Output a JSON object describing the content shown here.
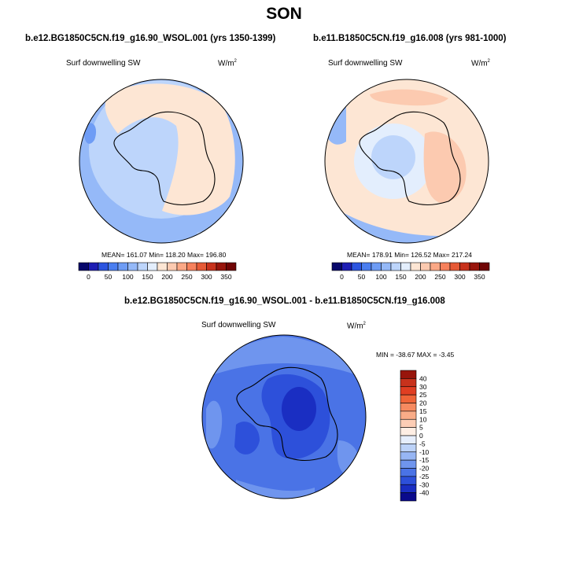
{
  "page": {
    "title": "SON"
  },
  "chart_data": [
    {
      "type": "heatmap",
      "projection": "south-polar-stereographic",
      "title": "b.e12.BG1850C5CN.f19_g16.90_WSOL.001 (yrs 1350-1399)",
      "field_label": "Surf downwelling SW",
      "units_base": "W/m",
      "units_exp": "2",
      "stats": {
        "mean": "161.07",
        "min": "118.20",
        "max": "196.80",
        "text": "MEAN= 161.07  Min= 118.20  Max= 196.80"
      },
      "colorbar": {
        "orientation": "horizontal",
        "levels": [
          0,
          25,
          50,
          75,
          100,
          125,
          150,
          175,
          200,
          225,
          250,
          275,
          300,
          325,
          350
        ],
        "tick_labels": [
          "0",
          "50",
          "100",
          "150",
          "200",
          "250",
          "300",
          "350"
        ],
        "colors": [
          "#08086b",
          "#1e1eb4",
          "#2c55e0",
          "#4a7ef0",
          "#6e9cf5",
          "#95b9f8",
          "#bdd5fb",
          "#e3eefd",
          "#fde6d4",
          "#fccab0",
          "#fba886",
          "#f6815c",
          "#e65a36",
          "#c8321c",
          "#98150c",
          "#700505"
        ]
      }
    },
    {
      "type": "heatmap",
      "projection": "south-polar-stereographic",
      "title": "b.e11.B1850C5CN.f19_g16.008 (yrs 981-1000)",
      "field_label": "Surf downwelling SW",
      "units_base": "W/m",
      "units_exp": "2",
      "stats": {
        "mean": "178.91",
        "min": "126.52",
        "max": "217.24",
        "text": "MEAN= 178.91  Min= 126.52  Max= 217.24"
      },
      "colorbar": {
        "orientation": "horizontal",
        "levels": [
          0,
          25,
          50,
          75,
          100,
          125,
          150,
          175,
          200,
          225,
          250,
          275,
          300,
          325,
          350
        ],
        "tick_labels": [
          "0",
          "50",
          "100",
          "150",
          "200",
          "250",
          "300",
          "350"
        ],
        "colors": [
          "#08086b",
          "#1e1eb4",
          "#2c55e0",
          "#4a7ef0",
          "#6e9cf5",
          "#95b9f8",
          "#bdd5fb",
          "#e3eefd",
          "#fde6d4",
          "#fccab0",
          "#fba886",
          "#f6815c",
          "#e65a36",
          "#c8321c",
          "#98150c",
          "#700505"
        ]
      }
    },
    {
      "type": "heatmap",
      "projection": "south-polar-stereographic",
      "title": "b.e12.BG1850C5CN.f19_g16.90_WSOL.001 - b.e11.B1850C5CN.f19_g16.008",
      "field_label": "Surf downwelling SW",
      "units_base": "W/m",
      "units_exp": "2",
      "stats": {
        "min": "-38.67",
        "max": "-3.45",
        "text": "MIN = -38.67 MAX =  -3.45"
      },
      "colorbar": {
        "orientation": "vertical",
        "levels": [
          -40,
          -30,
          -25,
          -20,
          -15,
          -10,
          -5,
          0,
          5,
          10,
          15,
          20,
          25,
          30,
          40
        ],
        "tick_labels": [
          "40",
          "30",
          "25",
          "20",
          "15",
          "10",
          "5",
          "0",
          "-5",
          "-10",
          "-15",
          "-20",
          "-25",
          "-30",
          "-40"
        ],
        "colors_top_to_bottom": [
          "#98150c",
          "#c8321c",
          "#e03e22",
          "#ef6438",
          "#f68a60",
          "#f9ac88",
          "#fccdb5",
          "#feeee4",
          "#e6eefc",
          "#bcd2f8",
          "#97b6f4",
          "#6f95ee",
          "#4a73e6",
          "#2d50da",
          "#1a2ec2",
          "#0a0a8c"
        ]
      }
    }
  ]
}
